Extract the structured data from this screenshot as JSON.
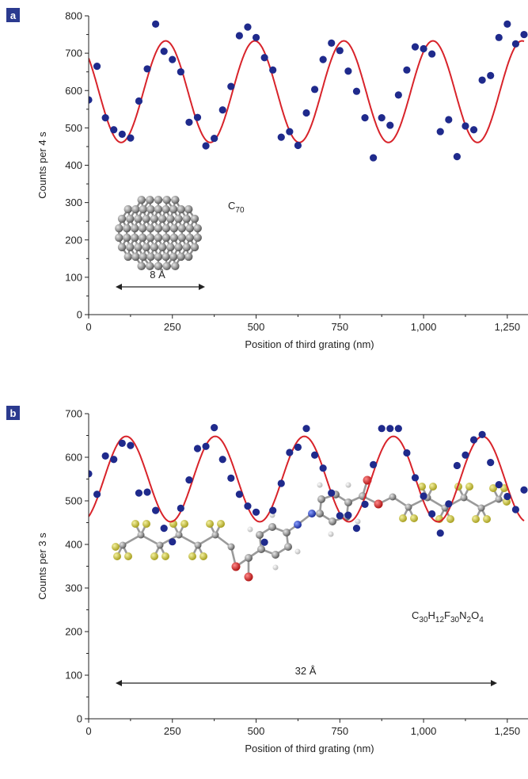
{
  "chart_data": [
    {
      "type": "scatter",
      "panel_label": "a",
      "xlabel": "Position of third grating (nm)",
      "ylabel": "Counts per 4 s",
      "xlim": [
        0,
        1300
      ],
      "ylim": [
        0,
        800
      ],
      "xticks": [
        0,
        250,
        500,
        750,
        1000,
        1250
      ],
      "xtick_labels": [
        "0",
        "250",
        "500",
        "750",
        "1,000",
        "1,250"
      ],
      "yticks": [
        0,
        100,
        200,
        300,
        400,
        500,
        600,
        700,
        800
      ],
      "ytick_labels": [
        "0",
        "100",
        "200",
        "300",
        "400",
        "500",
        "600",
        "700",
        "800"
      ],
      "colors": {
        "points": "#1f2a8c",
        "fit": "#d8232a",
        "panel_label_bg": "#2b3a8f",
        "axis": "#222222"
      },
      "series": [
        {
          "kind": "points",
          "x": [
            0,
            25,
            50,
            75,
            100,
            125,
            150,
            175,
            200,
            225,
            250,
            275,
            300,
            325,
            350,
            375,
            400,
            425,
            450,
            475,
            500,
            525,
            550,
            575,
            600,
            625,
            650,
            675,
            700,
            725,
            750,
            775,
            800,
            825,
            850,
            875,
            900,
            925,
            950,
            975,
            1000,
            1025,
            1050,
            1075,
            1100,
            1125,
            1150,
            1175,
            1200,
            1225,
            1250,
            1275,
            1300
          ],
          "y": [
            575,
            665,
            527,
            495,
            483,
            473,
            572,
            658,
            778,
            705,
            683,
            650,
            515,
            528,
            452,
            472,
            548,
            611,
            747,
            770,
            742,
            688,
            655,
            475,
            490,
            453,
            540,
            603,
            683,
            727,
            707,
            652,
            598,
            527,
            420,
            527,
            507,
            588,
            655,
            717,
            712,
            698,
            490,
            522,
            423,
            505,
            495,
            628,
            640,
            742,
            778,
            725,
            750
          ]
        },
        {
          "kind": "fit",
          "mean": 597,
          "amplitude": 136,
          "period": 266,
          "phase_x": 230
        }
      ],
      "annotations": {
        "molecule_label": "C",
        "molecule_sub": "70",
        "scale_label": "8 Å"
      }
    },
    {
      "type": "scatter",
      "panel_label": "b",
      "xlabel": "Position of third grating (nm)",
      "ylabel": "Counts per 3 s",
      "xlim": [
        0,
        1300
      ],
      "ylim": [
        0,
        700
      ],
      "xticks": [
        0,
        250,
        500,
        750,
        1000,
        1250
      ],
      "xtick_labels": [
        "0",
        "250",
        "500",
        "750",
        "1,000",
        "1,250"
      ],
      "yticks": [
        0,
        100,
        200,
        300,
        400,
        500,
        600,
        700
      ],
      "ytick_labels": [
        "0",
        "100",
        "200",
        "300",
        "400",
        "500",
        "600",
        "700"
      ],
      "colors": {
        "points": "#1f2a8c",
        "fit": "#d8232a",
        "panel_label_bg": "#2b3a8f",
        "axis": "#222222"
      },
      "series": [
        {
          "kind": "points",
          "x": [
            0,
            25,
            50,
            75,
            100,
            125,
            150,
            175,
            200,
            225,
            250,
            275,
            300,
            325,
            350,
            375,
            400,
            425,
            450,
            475,
            500,
            525,
            550,
            575,
            600,
            625,
            650,
            675,
            700,
            725,
            750,
            775,
            800,
            825,
            850,
            875,
            900,
            925,
            950,
            975,
            1000,
            1025,
            1050,
            1075,
            1100,
            1125,
            1150,
            1175,
            1200,
            1225,
            1250,
            1275,
            1300
          ],
          "y": [
            562,
            515,
            603,
            595,
            632,
            627,
            518,
            520,
            478,
            437,
            406,
            483,
            548,
            620,
            625,
            668,
            595,
            552,
            515,
            488,
            474,
            405,
            478,
            540,
            611,
            623,
            666,
            605,
            575,
            518,
            466,
            467,
            437,
            492,
            583,
            666,
            666,
            666,
            610,
            553,
            511,
            470,
            426,
            493,
            581,
            605,
            640,
            652,
            588,
            537,
            510,
            480,
            525
          ]
        },
        {
          "kind": "fit",
          "mean": 550,
          "amplitude": 98,
          "period": 266,
          "phase_x": 112
        }
      ],
      "annotations": {
        "formula": [
          "C",
          "30",
          "H",
          "12",
          "F",
          "30",
          "N",
          "2",
          "O",
          "4"
        ],
        "scale_label": "32 Å"
      }
    }
  ]
}
